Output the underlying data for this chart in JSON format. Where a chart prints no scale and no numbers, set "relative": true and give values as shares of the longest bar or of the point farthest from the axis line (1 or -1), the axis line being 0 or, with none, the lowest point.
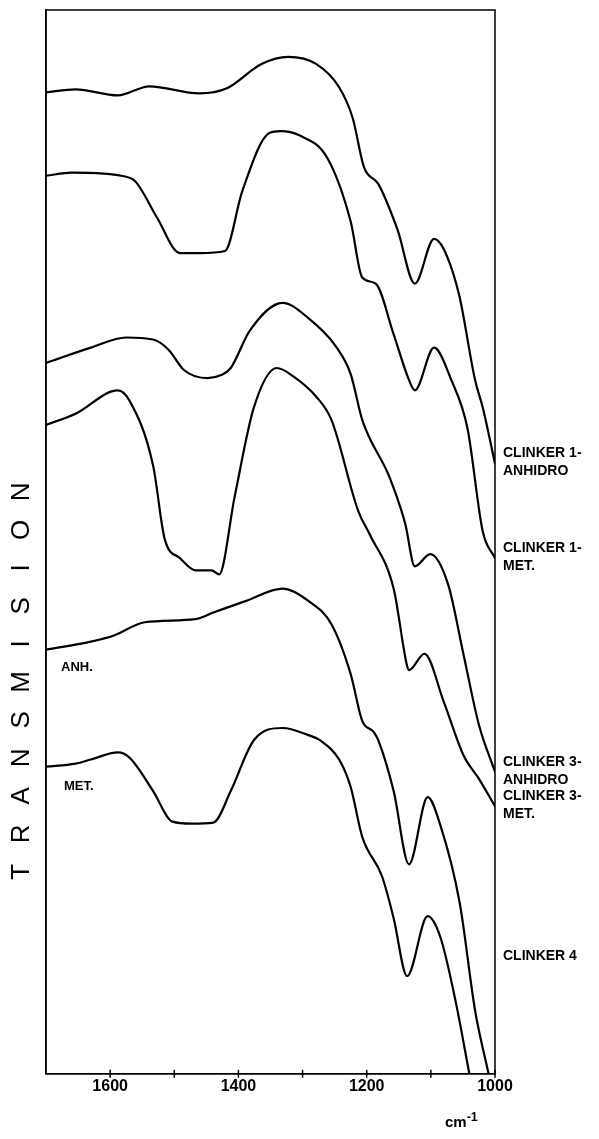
{
  "chart_data": {
    "type": "line",
    "relative": true,
    "xlabel": "cm$^{-1}$",
    "ylabel": "TRANSMISION",
    "xlim": [
      1700,
      1000
    ],
    "xticks": [
      1600,
      {
        "value": 1500,
        "label": null
      },
      1400,
      {
        "value": 1300,
        "label": null
      },
      1200,
      {
        "value": 1100,
        "label": null
      },
      1000
    ],
    "grid": false,
    "legend": false,
    "marker": "none",
    "line_style": "solid",
    "series": [
      {
        "name": "CLINKER 1- ANHIDRO",
        "color": "#000000",
        "x": [
          1700,
          1654,
          1588,
          1539,
          1461,
          1418,
          1364,
          1322,
          1279,
          1243,
          1222,
          1204,
          1182,
          1152,
          1125,
          1095,
          1080,
          1056,
          1031,
          1019,
          1000
        ],
        "values": [
          0.965,
          0.968,
          0.962,
          0.971,
          0.964,
          0.969,
          0.993,
          1.0,
          0.993,
          0.97,
          0.94,
          0.891,
          0.875,
          0.83,
          0.777,
          0.821,
          0.811,
          0.766,
          0.682,
          0.655,
          0.6
        ]
      },
      {
        "name": "CLINKER 1- MET.",
        "color": "#000000",
        "x": [
          1700,
          1660,
          1575,
          1560,
          1527,
          1491,
          1461,
          1421,
          1394,
          1352,
          1334,
          1306,
          1261,
          1225,
          1207,
          1186,
          1158,
          1134,
          1125,
          1095,
          1068,
          1043,
          1019,
          1000
        ],
        "values": [
          0.883,
          0.886,
          0.882,
          0.877,
          0.842,
          0.807,
          0.807,
          0.809,
          0.868,
          0.925,
          0.927,
          0.923,
          0.9,
          0.838,
          0.783,
          0.777,
          0.727,
          0.682,
          0.672,
          0.714,
          0.682,
          0.635,
          0.533,
          0.507
        ]
      },
      {
        "name": "CLINKER 3- ANHIDRO",
        "color": "#000000",
        "x": [
          1700,
          1630,
          1575,
          1533,
          1509,
          1485,
          1448,
          1427,
          1412,
          1382,
          1331,
          1291,
          1249,
          1225,
          1207,
          1164,
          1140,
          1125,
          1101,
          1073,
          1049,
          1025,
          1000
        ],
        "values": [
          0.699,
          0.714,
          0.724,
          0.722,
          0.712,
          0.692,
          0.684,
          0.687,
          0.694,
          0.731,
          0.758,
          0.743,
          0.716,
          0.688,
          0.643,
          0.586,
          0.541,
          0.499,
          0.511,
          0.481,
          0.412,
          0.343,
          0.297
        ]
      },
      {
        "name": "CLINKER 3- MET.",
        "color": "#000000",
        "x": [
          1700,
          1654,
          1588,
          1570,
          1533,
          1515,
          1491,
          1467,
          1442,
          1430,
          1406,
          1376,
          1340,
          1315,
          1279,
          1255,
          1213,
          1195,
          1158,
          1137,
          1134,
          1110,
          1080,
          1049,
          1025,
          1000
        ],
        "values": [
          0.638,
          0.649,
          0.672,
          0.662,
          0.598,
          0.526,
          0.507,
          0.495,
          0.495,
          0.491,
          0.567,
          0.655,
          0.694,
          0.686,
          0.666,
          0.643,
          0.553,
          0.53,
          0.477,
          0.401,
          0.397,
          0.413,
          0.366,
          0.313,
          0.29,
          0.263
        ]
      },
      {
        "color": "#000000",
        "x": [
          1700,
          1630,
          1594,
          1546,
          1467,
          1437,
          1388,
          1331,
          1291,
          1255,
          1225,
          1207,
          1189,
          1182,
          1158,
          1134,
          1105,
          1085,
          1055,
          1031,
          1010
        ],
        "values": [
          0.417,
          0.425,
          0.431,
          0.444,
          0.447,
          0.454,
          0.465,
          0.477,
          0.465,
          0.442,
          0.393,
          0.347,
          0.336,
          0.328,
          0.278,
          0.206,
          0.272,
          0.244,
          0.168,
          0.062,
          0.0
        ]
      },
      {
        "color": "#000000",
        "x": [
          1700,
          1654,
          1630,
          1588,
          1570,
          1533,
          1503,
          1473,
          1439,
          1412,
          1376,
          1331,
          1291,
          1273,
          1243,
          1225,
          1207,
          1176,
          1158,
          1137,
          1105,
          1085,
          1061,
          1040
        ],
        "values": [
          0.302,
          0.305,
          0.309,
          0.316,
          0.311,
          0.278,
          0.248,
          0.246,
          0.247,
          0.278,
          0.328,
          0.34,
          0.333,
          0.328,
          0.309,
          0.282,
          0.233,
          0.194,
          0.153,
          0.096,
          0.155,
          0.134,
          0.07,
          0.0
        ]
      }
    ],
    "annotations": [
      "ANH.",
      "MET.",
      "CLINKER 4"
    ]
  }
}
